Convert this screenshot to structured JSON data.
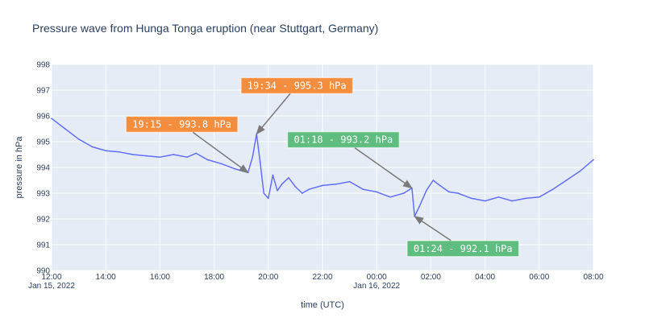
{
  "chart_data": {
    "type": "line",
    "title": "Pressure wave from Hunga Tonga eruption (near Stuttgart, Germany)",
    "xlabel": "time (UTC)",
    "ylabel": "pressure in hPa",
    "xlim": [
      "2022-01-15 12:00",
      "2022-01-16 08:00"
    ],
    "ylim": [
      990,
      998
    ],
    "grid": true,
    "x_ticks": [
      {
        "value": "2022-01-15 12:00",
        "label": "12:00",
        "sublabel": "Jan 15, 2022"
      },
      {
        "value": "2022-01-15 14:00",
        "label": "14:00"
      },
      {
        "value": "2022-01-15 16:00",
        "label": "16:00"
      },
      {
        "value": "2022-01-15 18:00",
        "label": "18:00"
      },
      {
        "value": "2022-01-15 20:00",
        "label": "20:00"
      },
      {
        "value": "2022-01-15 22:00",
        "label": "22:00"
      },
      {
        "value": "2022-01-16 00:00",
        "label": "00:00",
        "sublabel": "Jan 16, 2022"
      },
      {
        "value": "2022-01-16 02:00",
        "label": "02:00"
      },
      {
        "value": "2022-01-16 04:00",
        "label": "04:00"
      },
      {
        "value": "2022-01-16 06:00",
        "label": "06:00"
      },
      {
        "value": "2022-01-16 08:00",
        "label": "08:00"
      }
    ],
    "y_ticks": [
      990,
      991,
      992,
      993,
      994,
      995,
      996,
      997,
      998
    ],
    "series": [
      {
        "color": "#636efa",
        "points": [
          [
            "2022-01-15 12:00",
            995.9
          ],
          [
            "2022-01-15 12:30",
            995.5
          ],
          [
            "2022-01-15 13:00",
            995.1
          ],
          [
            "2022-01-15 13:30",
            994.8
          ],
          [
            "2022-01-15 14:00",
            994.65
          ],
          [
            "2022-01-15 14:30",
            994.6
          ],
          [
            "2022-01-15 15:00",
            994.5
          ],
          [
            "2022-01-15 15:30",
            994.45
          ],
          [
            "2022-01-15 16:00",
            994.4
          ],
          [
            "2022-01-15 16:30",
            994.5
          ],
          [
            "2022-01-15 17:00",
            994.4
          ],
          [
            "2022-01-15 17:20",
            994.55
          ],
          [
            "2022-01-15 17:45",
            994.3
          ],
          [
            "2022-01-15 18:15",
            994.15
          ],
          [
            "2022-01-15 18:45",
            993.95
          ],
          [
            "2022-01-15 19:15",
            993.8
          ],
          [
            "2022-01-15 19:25",
            994.4
          ],
          [
            "2022-01-15 19:34",
            995.3
          ],
          [
            "2022-01-15 19:42",
            994.2
          ],
          [
            "2022-01-15 19:50",
            993.0
          ],
          [
            "2022-01-15 20:00",
            992.8
          ],
          [
            "2022-01-15 20:10",
            993.7
          ],
          [
            "2022-01-15 20:20",
            993.1
          ],
          [
            "2022-01-15 20:30",
            993.35
          ],
          [
            "2022-01-15 20:45",
            993.6
          ],
          [
            "2022-01-15 21:00",
            993.25
          ],
          [
            "2022-01-15 21:15",
            993.0
          ],
          [
            "2022-01-15 21:30",
            993.15
          ],
          [
            "2022-01-15 22:00",
            993.3
          ],
          [
            "2022-01-15 22:30",
            993.35
          ],
          [
            "2022-01-15 23:00",
            993.45
          ],
          [
            "2022-01-15 23:30",
            993.15
          ],
          [
            "2022-01-16 00:00",
            993.05
          ],
          [
            "2022-01-16 00:30",
            992.85
          ],
          [
            "2022-01-16 01:00",
            993.0
          ],
          [
            "2022-01-16 01:18",
            993.2
          ],
          [
            "2022-01-16 01:24",
            992.1
          ],
          [
            "2022-01-16 01:35",
            992.5
          ],
          [
            "2022-01-16 01:50",
            993.1
          ],
          [
            "2022-01-16 02:05",
            993.5
          ],
          [
            "2022-01-16 02:20",
            993.3
          ],
          [
            "2022-01-16 02:40",
            993.05
          ],
          [
            "2022-01-16 03:00",
            993.0
          ],
          [
            "2022-01-16 03:30",
            992.8
          ],
          [
            "2022-01-16 04:00",
            992.7
          ],
          [
            "2022-01-16 04:30",
            992.85
          ],
          [
            "2022-01-16 05:00",
            992.7
          ],
          [
            "2022-01-16 05:30",
            992.8
          ],
          [
            "2022-01-16 06:00",
            992.85
          ],
          [
            "2022-01-16 06:30",
            993.15
          ],
          [
            "2022-01-16 07:00",
            993.5
          ],
          [
            "2022-01-16 07:30",
            993.85
          ],
          [
            "2022-01-16 08:00",
            994.3
          ]
        ]
      }
    ],
    "annotations": [
      {
        "text": "19:34 - 995.3 hPa",
        "x": "2022-01-15 19:34",
        "y": 995.3,
        "color": "#f58d3f"
      },
      {
        "text": "19:15 - 993.8 hPa",
        "x": "2022-01-15 19:15",
        "y": 993.8,
        "color": "#f58d3f"
      },
      {
        "text": "01:18 - 993.2 hPa",
        "x": "2022-01-16 01:18",
        "y": 993.2,
        "color": "#5ebd7f"
      },
      {
        "text": "01:24 - 992.1 hPa",
        "x": "2022-01-16 01:24",
        "y": 992.1,
        "color": "#5ebd7f"
      }
    ]
  }
}
